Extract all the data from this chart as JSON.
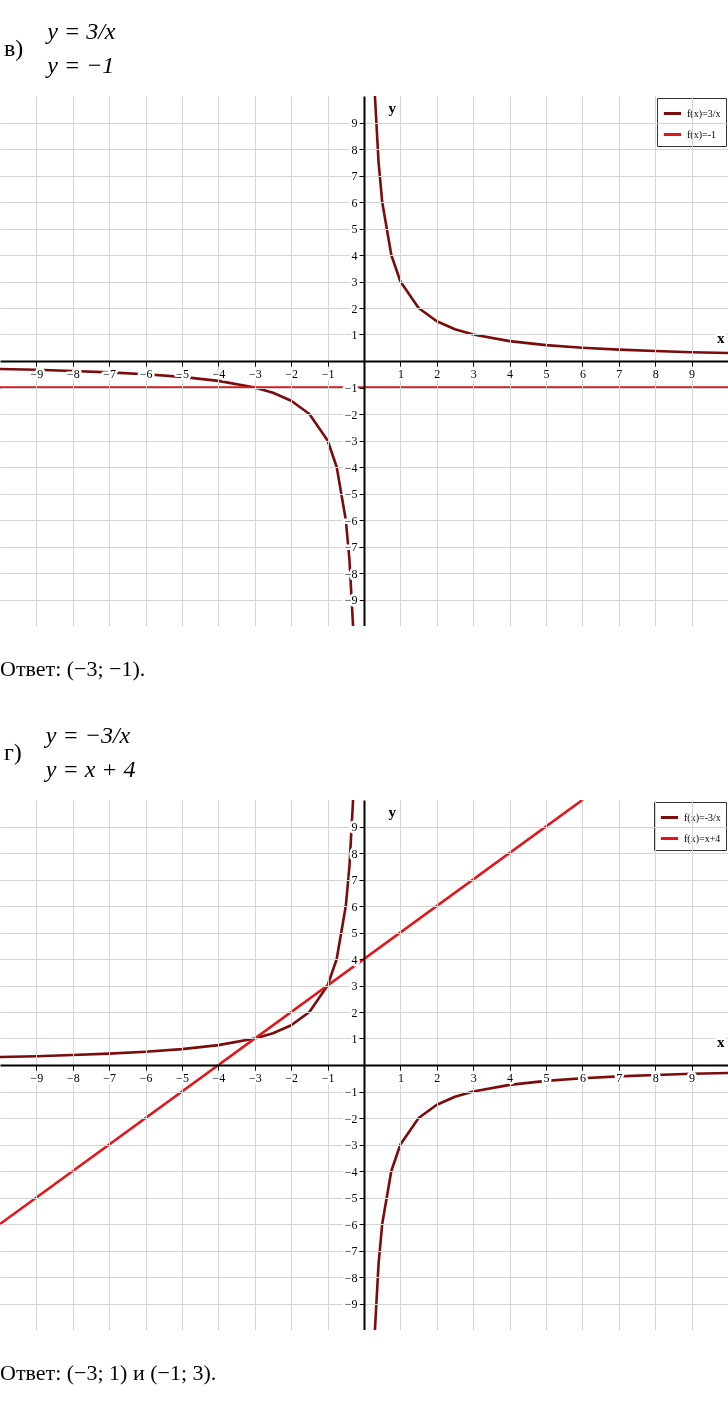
{
  "chart_data": [
    {
      "type": "line",
      "title": "в)",
      "subtitle": "y = 3/x\ny = −1",
      "xlabel": "x",
      "ylabel": "y",
      "xlim": [
        -10,
        10
      ],
      "ylim": [
        -10,
        10
      ],
      "xticks": [
        -9,
        -8,
        -7,
        -6,
        -5,
        -4,
        -3,
        -2,
        -1,
        1,
        2,
        3,
        4,
        5,
        6,
        7,
        8,
        9
      ],
      "yticks": [
        -9,
        -8,
        -7,
        -6,
        -5,
        -4,
        -3,
        -2,
        -1,
        1,
        2,
        3,
        4,
        5,
        6,
        7,
        8,
        9
      ],
      "grid": true,
      "legend": "top right",
      "annotations": [
        "Ответ: (−3; −1)."
      ],
      "series": [
        {
          "name": "f(x)=3/x",
          "color": "#7a0c0c",
          "x": [
            -10,
            -9,
            -8,
            -7,
            -6,
            -5,
            -4,
            -3,
            -2.5,
            -2,
            -1.5,
            -1,
            -0.75,
            -0.5,
            -0.4,
            -0.3,
            0,
            0.3,
            0.4,
            0.5,
            0.75,
            1,
            1.5,
            2,
            2.5,
            3,
            4,
            5,
            6,
            7,
            8,
            9,
            10
          ],
          "values": [
            -0.3,
            -0.33,
            -0.38,
            -0.43,
            -0.5,
            -0.6,
            -0.75,
            -1,
            -1.2,
            -1.5,
            -2,
            -3,
            -4,
            -6,
            -7.5,
            -10,
            null,
            10,
            7.5,
            6,
            4,
            3,
            2,
            1.5,
            1.2,
            1,
            0.75,
            0.6,
            0.5,
            0.43,
            0.38,
            0.33,
            0.3
          ]
        },
        {
          "name": "f(x)=-1",
          "color": "#e3151b",
          "x": [
            -10,
            10
          ],
          "values": [
            -1,
            -1
          ]
        }
      ]
    },
    {
      "type": "line",
      "title": "г)",
      "subtitle": "y = −3/x\ny = x + 4",
      "xlabel": "x",
      "ylabel": "y",
      "xlim": [
        -10,
        10
      ],
      "ylim": [
        -10,
        10
      ],
      "xticks": [
        -9,
        -8,
        -7,
        -6,
        -5,
        -4,
        -3,
        -2,
        -1,
        1,
        2,
        3,
        4,
        5,
        6,
        7,
        8,
        9
      ],
      "yticks": [
        -9,
        -8,
        -7,
        -6,
        -5,
        -4,
        -3,
        -2,
        -1,
        1,
        2,
        3,
        4,
        5,
        6,
        7,
        8,
        9
      ],
      "grid": true,
      "legend": "top right",
      "annotations": [
        "Ответ: (−3; 1) и (−1; 3)."
      ],
      "series": [
        {
          "name": "f(x)=-3/x",
          "color": "#7a0c0c",
          "x": [
            -10,
            -9,
            -8,
            -7,
            -6,
            -5,
            -4,
            -3,
            -2.5,
            -2,
            -1.5,
            -1,
            -0.75,
            -0.5,
            -0.4,
            -0.3,
            0,
            0.3,
            0.4,
            0.5,
            0.75,
            1,
            1.5,
            2,
            2.5,
            3,
            4,
            5,
            6,
            7,
            8,
            9,
            10
          ],
          "values": [
            0.3,
            0.33,
            0.38,
            0.43,
            0.5,
            0.6,
            0.75,
            1,
            1.2,
            1.5,
            2,
            3,
            4,
            6,
            7.5,
            10,
            null,
            -10,
            -7.5,
            -6,
            -4,
            -3,
            -2,
            -1.5,
            -1.2,
            -1,
            -0.75,
            -0.6,
            -0.5,
            -0.43,
            -0.38,
            -0.33,
            -0.3
          ]
        },
        {
          "name": "f(x)=x+4",
          "color": "#e3151b",
          "x": [
            -10,
            6
          ],
          "values": [
            -6,
            10
          ]
        }
      ]
    }
  ]
}
